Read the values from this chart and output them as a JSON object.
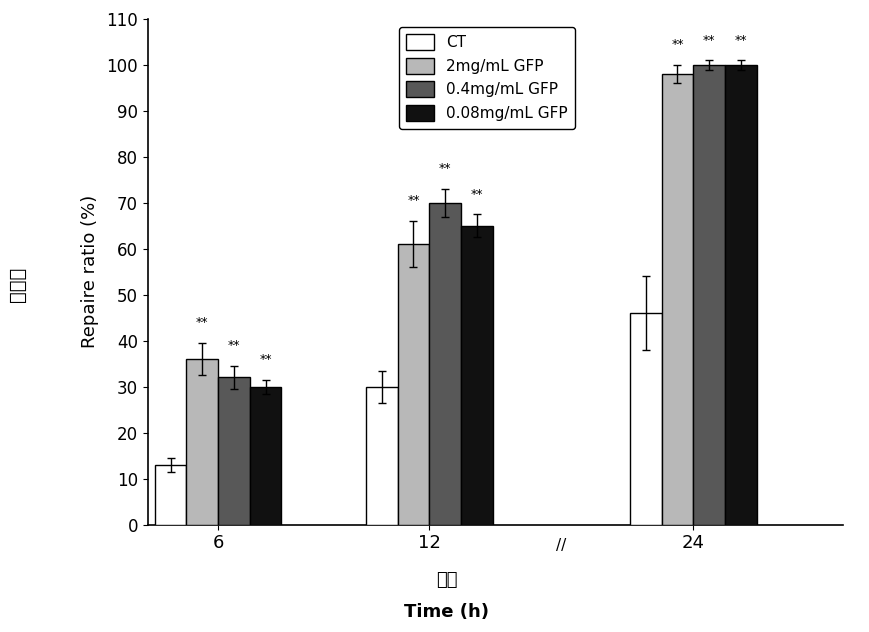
{
  "title": "",
  "xlabel_cn": "时间",
  "xlabel_en": "Time (h)",
  "ylabel_en": "Repaire ratio (%)",
  "ylabel_cn": "修复率",
  "time_labels": [
    "6",
    "12",
    "24"
  ],
  "categories": [
    "CT",
    "2mg/mL GFP",
    "0.4mg/mL GFP",
    "0.08mg/mL GFP"
  ],
  "bar_colors": [
    "#FFFFFF",
    "#B8B8B8",
    "#585858",
    "#111111"
  ],
  "bar_edgecolor": "#000000",
  "values": [
    [
      13,
      36,
      32,
      30
    ],
    [
      30,
      61,
      70,
      65
    ],
    [
      46,
      98,
      100,
      100
    ]
  ],
  "errors": [
    [
      1.5,
      3.5,
      2.5,
      1.5
    ],
    [
      3.5,
      5.0,
      3.0,
      2.5
    ],
    [
      8.0,
      2.0,
      1.0,
      1.0
    ]
  ],
  "ylim": [
    0,
    110
  ],
  "yticks": [
    0,
    10,
    20,
    30,
    40,
    50,
    60,
    70,
    80,
    90,
    100,
    110
  ],
  "significance": [
    [
      false,
      true,
      true,
      true
    ],
    [
      false,
      true,
      true,
      true
    ],
    [
      false,
      true,
      true,
      true
    ]
  ],
  "bar_width": 0.18,
  "background_color": "#FFFFFF",
  "legend_fontsize": 11,
  "axis_fontsize": 13,
  "tick_fontsize": 12
}
